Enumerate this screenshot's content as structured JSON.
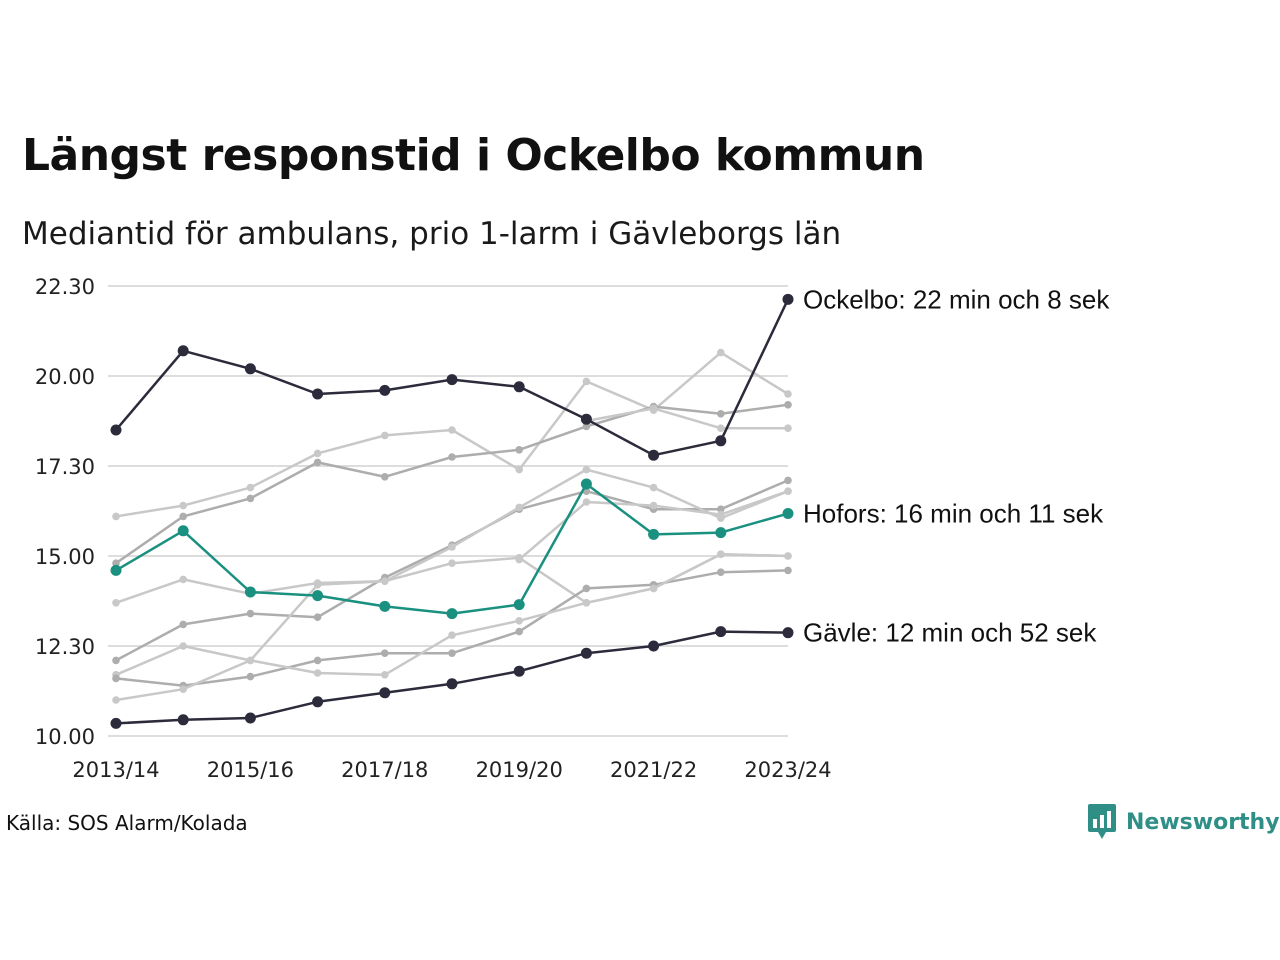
{
  "title": "Längst responstid i Ockelbo kommun",
  "subtitle": "Mediantid för ambulans, prio 1-larm i Gävleborgs län",
  "source": "Källa: SOS Alarm/Kolada",
  "brand": {
    "name": "Newsworthy",
    "icon": "newsworthy-logo-icon",
    "color": "#2f8f86"
  },
  "colors": {
    "dark": "#2b2b3b",
    "highlight": "#1a9080",
    "grey_light": "#c8c8c8",
    "grey_mid": "#adadad",
    "grid": "#dddddd"
  },
  "chart_data": {
    "type": "line",
    "x": [
      "2013/14",
      "2014/15",
      "2015/16",
      "2016/17",
      "2017/18",
      "2018/19",
      "2019/20",
      "2020/21",
      "2021/22",
      "2022/23",
      "2023/24"
    ],
    "x_tick_labels": [
      "2013/14",
      "2015/16",
      "2017/18",
      "2019/20",
      "2021/22",
      "2023/24"
    ],
    "y_tick_labels": [
      "10.00",
      "12.30",
      "15.00",
      "17.30",
      "20.00",
      "22.30"
    ],
    "ylim": [
      10.0,
      22.5
    ],
    "grid": true,
    "series": [
      {
        "name": "Ockelbo",
        "style": "dark",
        "label": "Ockelbo: 22 min och 8 sek",
        "values": [
          18.5,
          20.7,
          20.2,
          19.5,
          19.6,
          19.9,
          19.7,
          18.8,
          17.8,
          18.2,
          22.13
        ]
      },
      {
        "name": "Hofors",
        "style": "highlight",
        "label": "Hofors: 16 min och 11 sek",
        "values": [
          14.6,
          15.7,
          14.0,
          13.9,
          13.6,
          13.4,
          13.65,
          17.0,
          15.6,
          15.65,
          16.18
        ]
      },
      {
        "name": "Gävle",
        "style": "dark",
        "label": "Gävle: 12 min och 52 sek",
        "values": [
          10.35,
          10.45,
          10.5,
          10.95,
          11.2,
          11.45,
          11.8,
          12.3,
          12.5,
          12.9,
          12.87
        ]
      },
      {
        "style": "grey_light",
        "values": [
          16.1,
          16.4,
          16.9,
          17.85,
          18.35,
          18.5,
          17.4,
          19.85,
          19.05,
          20.65,
          19.5
        ]
      },
      {
        "style": "grey_mid",
        "values": [
          14.8,
          16.1,
          16.6,
          17.6,
          17.2,
          17.75,
          17.95,
          18.6,
          19.15,
          18.95,
          19.2
        ]
      },
      {
        "style": "grey_light",
        "values": [
          null,
          null,
          null,
          null,
          null,
          null,
          null,
          18.75,
          19.1,
          18.55,
          18.55
        ]
      },
      {
        "style": "grey_mid",
        "values": [
          12.1,
          13.1,
          13.4,
          13.3,
          14.4,
          15.3,
          16.3,
          16.8,
          16.3,
          16.3,
          17.1
        ]
      },
      {
        "style": "grey_light",
        "values": [
          11.7,
          12.5,
          12.1,
          14.2,
          14.3,
          15.25,
          16.35,
          17.4,
          16.9,
          16.05,
          16.8
        ]
      },
      {
        "style": "grey_light",
        "values": [
          null,
          null,
          null,
          null,
          null,
          null,
          14.9,
          16.5,
          16.4,
          16.15,
          16.8
        ]
      },
      {
        "style": "grey_light",
        "values": [
          13.7,
          14.35,
          13.95,
          14.25,
          14.3,
          14.8,
          14.95,
          13.7,
          14.1,
          15.05,
          15.0
        ]
      },
      {
        "style": "grey_mid",
        "values": [
          11.6,
          11.4,
          11.65,
          12.1,
          12.3,
          12.3,
          12.9,
          14.1,
          14.2,
          14.55,
          14.6
        ]
      },
      {
        "style": "grey_light",
        "values": [
          11.0,
          11.3,
          12.1,
          11.75,
          11.7,
          12.8,
          13.2,
          13.7,
          14.1,
          15.05,
          15.0
        ]
      }
    ]
  }
}
